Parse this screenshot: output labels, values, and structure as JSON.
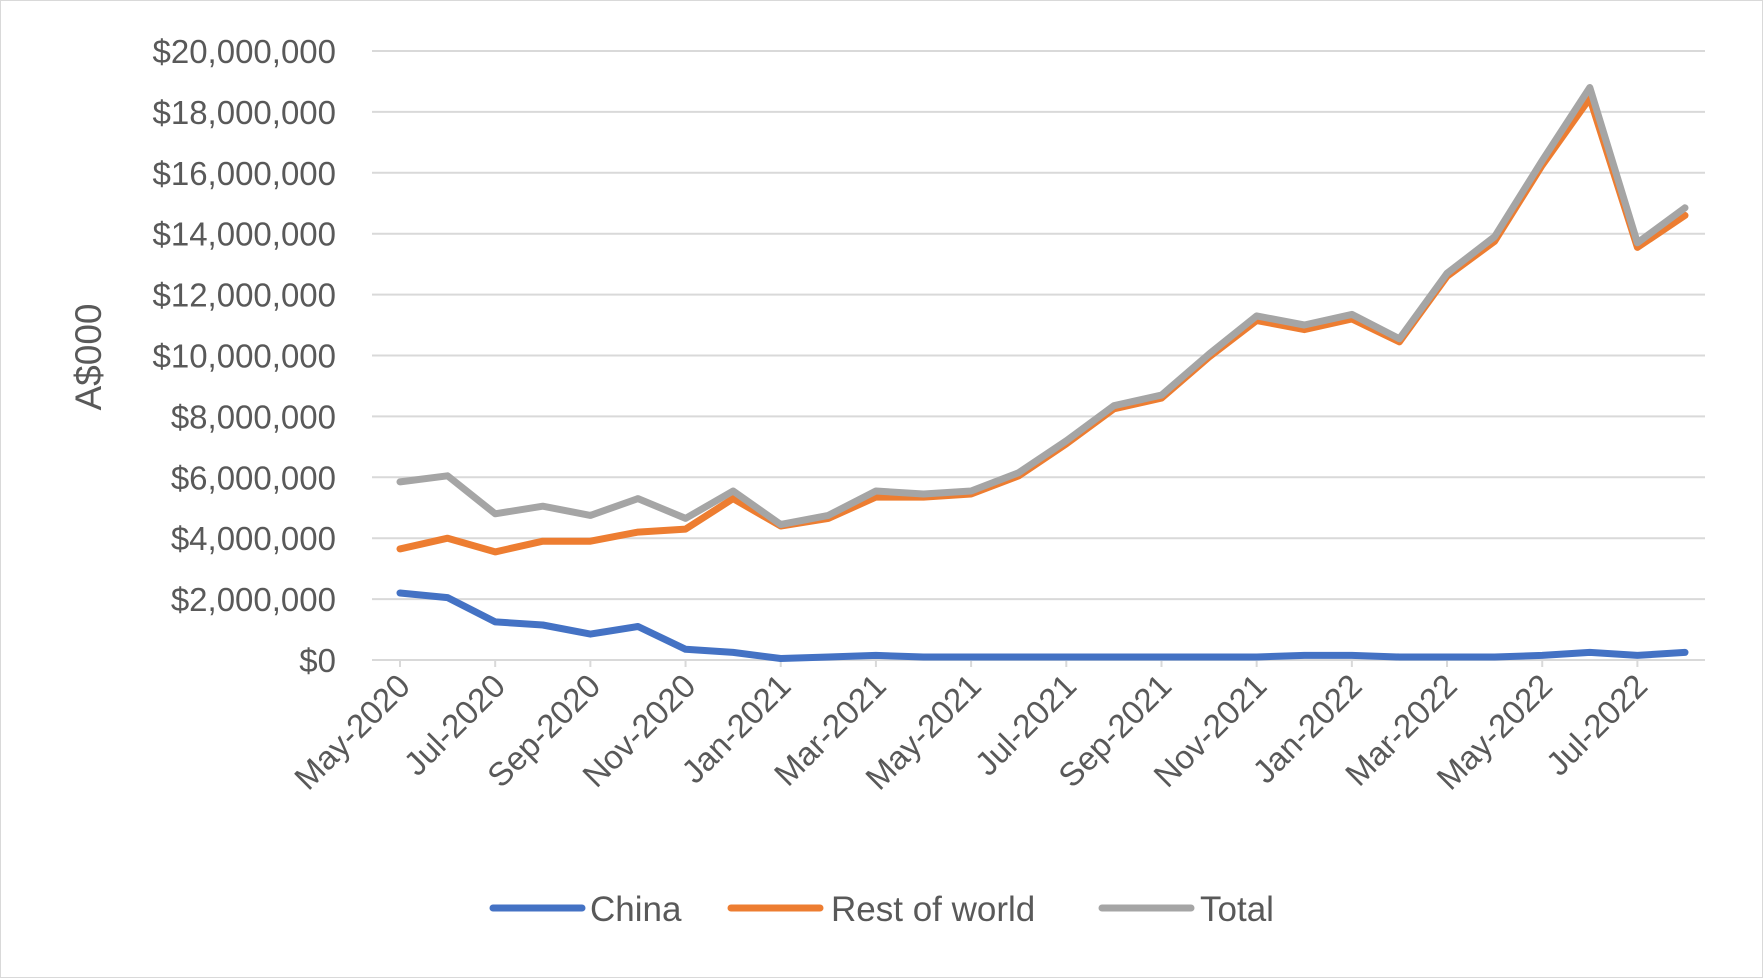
{
  "chart_data": {
    "type": "line",
    "title": "",
    "xlabel": "",
    "ylabel": "A$000",
    "ylim": [
      0,
      20000000
    ],
    "y_ticks": [
      "$0",
      "$2,000,000",
      "$4,000,000",
      "$6,000,000",
      "$8,000,000",
      "$10,000,000",
      "$12,000,000",
      "$14,000,000",
      "$16,000,000",
      "$18,000,000",
      "$20,000,000"
    ],
    "y_tick_values": [
      0,
      2000000,
      4000000,
      6000000,
      8000000,
      10000000,
      12000000,
      14000000,
      16000000,
      18000000,
      20000000
    ],
    "x": [
      "May-2020",
      "Jun-2020",
      "Jul-2020",
      "Aug-2020",
      "Sep-2020",
      "Oct-2020",
      "Nov-2020",
      "Dec-2020",
      "Jan-2021",
      "Feb-2021",
      "Mar-2021",
      "Apr-2021",
      "May-2021",
      "Jun-2021",
      "Jul-2021",
      "Aug-2021",
      "Sep-2021",
      "Oct-2021",
      "Nov-2021",
      "Dec-2021",
      "Jan-2022",
      "Feb-2022",
      "Mar-2022",
      "Apr-2022",
      "May-2022",
      "Jun-2022",
      "Jul-2022",
      "Aug-2022"
    ],
    "x_tick_labels": [
      "May-2020",
      "Jul-2020",
      "Sep-2020",
      "Nov-2020",
      "Jan-2021",
      "Mar-2021",
      "May-2021",
      "Jul-2021",
      "Sep-2021",
      "Nov-2021",
      "Jan-2022",
      "Mar-2022",
      "May-2022",
      "Jul-2022"
    ],
    "grid": true,
    "legend_position": "bottom",
    "series": [
      {
        "name": "China",
        "color": "#4472c4",
        "values": [
          2200000,
          2050000,
          1250000,
          1150000,
          850000,
          1100000,
          350000,
          250000,
          50000,
          100000,
          150000,
          100000,
          100000,
          100000,
          100000,
          100000,
          100000,
          100000,
          100000,
          150000,
          150000,
          100000,
          100000,
          100000,
          150000,
          250000,
          150000,
          250000
        ]
      },
      {
        "name": "Rest of world",
        "color": "#ed7d31",
        "values": [
          3650000,
          4000000,
          3550000,
          3900000,
          3900000,
          4200000,
          4300000,
          5300000,
          4400000,
          4650000,
          5350000,
          5350000,
          5450000,
          6050000,
          7100000,
          8250000,
          8600000,
          9950000,
          11150000,
          10850000,
          11200000,
          10450000,
          12600000,
          13750000,
          16250000,
          18450000,
          13550000,
          14600000
        ]
      },
      {
        "name": "Total",
        "color": "#a5a5a5",
        "values": [
          5850000,
          6050000,
          4800000,
          5050000,
          4750000,
          5300000,
          4650000,
          5550000,
          4450000,
          4750000,
          5550000,
          5450000,
          5550000,
          6150000,
          7200000,
          8350000,
          8700000,
          10050000,
          11300000,
          11000000,
          11350000,
          10550000,
          12700000,
          13900000,
          16400000,
          18800000,
          13700000,
          14850000
        ]
      }
    ]
  }
}
